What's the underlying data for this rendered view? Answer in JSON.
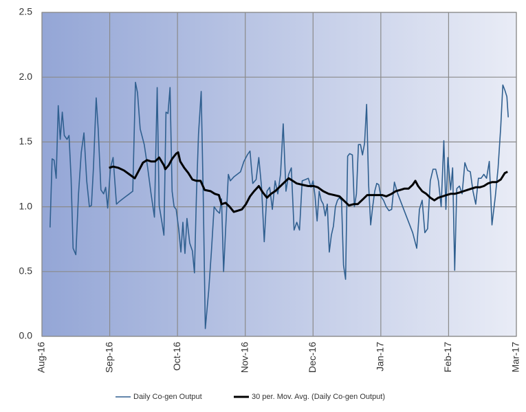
{
  "chart_data": {
    "type": "line",
    "xlim": [
      0,
      7
    ],
    "xticks": [
      {
        "value": 0,
        "label": "Aug-16"
      },
      {
        "value": 1,
        "label": "Sep-16"
      },
      {
        "value": 2,
        "label": "Oct-16"
      },
      {
        "value": 3,
        "label": "Nov-16"
      },
      {
        "value": 4,
        "label": "Dec-16"
      },
      {
        "value": 5,
        "label": "Jan-17"
      },
      {
        "value": 6,
        "label": "Feb-17"
      },
      {
        "value": 7,
        "label": "Mar-17"
      }
    ],
    "ylim": [
      0,
      2.5
    ],
    "yticks": [
      {
        "value": 0,
        "label": "0.0"
      },
      {
        "value": 0.5,
        "label": "0.5"
      },
      {
        "value": 1,
        "label": "1.0"
      },
      {
        "value": 1.5,
        "label": "1.5"
      },
      {
        "value": 2,
        "label": "2.0"
      },
      {
        "value": 2.5,
        "label": "2.5"
      }
    ],
    "grid": true,
    "legend": "bottom",
    "series": [
      {
        "name": "Daily Co-gen Output",
        "color": "#2f5f8f",
        "x": [
          0.12,
          0.15,
          0.18,
          0.21,
          0.24,
          0.27,
          0.3,
          0.33,
          0.37,
          0.4,
          0.43,
          0.46,
          0.5,
          0.54,
          0.58,
          0.62,
          0.66,
          0.7,
          0.73,
          0.76,
          0.8,
          0.83,
          0.87,
          0.91,
          0.94,
          0.97,
          1.01,
          1.05,
          1.1,
          1.14,
          1.19,
          1.24,
          1.29,
          1.34,
          1.38,
          1.41,
          1.45,
          1.51,
          1.56,
          1.61,
          1.66,
          1.7,
          1.73,
          1.77,
          1.8,
          1.83,
          1.86,
          1.89,
          1.92,
          1.95,
          1.98,
          2.02,
          2.05,
          2.08,
          2.11,
          2.14,
          2.18,
          2.22,
          2.25,
          2.28,
          2.31,
          2.35,
          2.38,
          2.41,
          2.46,
          2.5,
          2.54,
          2.58,
          2.62,
          2.65,
          2.68,
          2.71,
          2.75,
          2.78,
          2.83,
          2.88,
          2.93,
          2.98,
          3.03,
          3.07,
          3.11,
          3.16,
          3.2,
          3.24,
          3.28,
          3.32,
          3.36,
          3.4,
          3.44,
          3.48,
          3.52,
          3.56,
          3.6,
          3.64,
          3.68,
          3.72,
          3.76,
          3.8,
          3.84,
          3.89,
          3.93,
          3.97,
          4.0,
          4.03,
          4.06,
          4.09,
          4.12,
          4.15,
          4.18,
          4.21,
          4.24,
          4.27,
          4.3,
          4.33,
          4.36,
          4.39,
          4.42,
          4.45,
          4.48,
          4.51,
          4.54,
          4.58,
          4.61,
          4.64,
          4.67,
          4.7,
          4.73,
          4.76,
          4.79,
          4.82,
          4.85,
          4.88,
          4.91,
          4.94,
          4.97,
          5.0,
          5.04,
          5.08,
          5.12,
          5.16,
          5.2,
          5.25,
          5.47,
          5.53,
          5.57,
          5.61,
          5.65,
          5.69,
          5.73,
          5.77,
          5.81,
          5.85,
          5.89,
          5.93,
          5.96,
          5.99,
          6.03,
          6.06,
          6.09,
          6.12,
          6.16,
          6.2,
          6.24,
          6.28,
          6.32,
          6.36,
          6.4,
          6.44,
          6.48,
          6.52,
          6.56,
          6.6,
          6.64,
          6.69,
          6.73,
          6.77,
          6.8,
          6.83,
          6.86,
          6.88
        ],
        "values": [
          0.84,
          1.37,
          1.36,
          1.22,
          1.78,
          1.52,
          1.73,
          1.55,
          1.52,
          1.55,
          1.22,
          0.68,
          0.63,
          1.1,
          1.42,
          1.57,
          1.2,
          1.0,
          1.01,
          1.3,
          1.84,
          1.6,
          1.13,
          1.1,
          1.15,
          0.99,
          1.3,
          1.38,
          1.02,
          1.04,
          1.06,
          1.08,
          1.1,
          1.12,
          1.96,
          1.88,
          1.6,
          1.48,
          1.3,
          1.1,
          0.92,
          1.92,
          1.01,
          0.88,
          0.78,
          1.73,
          1.72,
          1.92,
          1.12,
          1.0,
          0.98,
          0.82,
          0.65,
          0.88,
          0.64,
          0.91,
          0.72,
          0.66,
          0.49,
          1.09,
          1.56,
          1.89,
          1.08,
          0.06,
          0.35,
          0.65,
          1.0,
          0.97,
          0.95,
          1.06,
          0.5,
          0.82,
          1.25,
          1.2,
          1.23,
          1.25,
          1.27,
          1.35,
          1.4,
          1.43,
          1.18,
          1.21,
          1.38,
          1.15,
          0.73,
          1.12,
          1.15,
          0.98,
          1.2,
          1.1,
          1.25,
          1.64,
          1.12,
          1.25,
          1.3,
          0.82,
          0.88,
          0.82,
          1.2,
          1.21,
          1.22,
          1.15,
          1.2,
          1.08,
          0.89,
          1.12,
          1.05,
          1.02,
          0.93,
          1.02,
          0.65,
          0.78,
          0.85,
          1.0,
          1.05,
          1.07,
          1.05,
          0.55,
          0.44,
          1.39,
          1.41,
          1.4,
          1.0,
          1.1,
          1.48,
          1.48,
          1.4,
          1.49,
          1.79,
          1.17,
          0.86,
          1.0,
          1.12,
          1.18,
          1.17,
          1.08,
          1.05,
          1.0,
          0.97,
          0.98,
          1.19,
          1.1,
          0.8,
          0.68,
          0.98,
          1.05,
          0.8,
          0.83,
          1.2,
          1.29,
          1.29,
          1.2,
          1.0,
          1.51,
          0.98,
          1.38,
          1.13,
          1.3,
          0.51,
          1.14,
          1.16,
          1.1,
          1.34,
          1.28,
          1.27,
          1.12,
          1.02,
          1.22,
          1.22,
          1.25,
          1.22,
          1.35,
          0.86,
          1.08,
          1.3,
          1.62,
          1.94,
          1.9,
          1.85,
          1.69
        ]
      },
      {
        "name": "30 per. Mov. Avg. (Daily Co-gen Output)",
        "color": "#000000",
        "x": [
          0.99,
          1.05,
          1.13,
          1.21,
          1.29,
          1.37,
          1.43,
          1.49,
          1.55,
          1.61,
          1.67,
          1.73,
          1.8,
          1.82,
          1.87,
          1.92,
          1.98,
          2.01,
          2.04,
          2.1,
          2.16,
          2.22,
          2.28,
          2.34,
          2.4,
          2.49,
          2.55,
          2.61,
          2.65,
          2.71,
          2.77,
          2.83,
          2.89,
          2.95,
          3.01,
          3.07,
          3.13,
          3.2,
          3.26,
          3.32,
          3.38,
          3.44,
          3.52,
          3.58,
          3.64,
          3.7,
          3.76,
          3.84,
          3.93,
          4.01,
          4.07,
          4.15,
          4.23,
          4.31,
          4.39,
          4.45,
          4.53,
          4.6,
          4.66,
          4.74,
          4.8,
          4.86,
          4.94,
          5.02,
          5.08,
          5.16,
          5.22,
          5.29,
          5.35,
          5.41,
          5.47,
          5.51,
          5.55,
          5.61,
          5.67,
          5.73,
          5.79,
          5.85,
          5.91,
          5.97,
          6.03,
          6.09,
          6.16,
          6.22,
          6.28,
          6.34,
          6.4,
          6.46,
          6.52,
          6.58,
          6.64,
          6.71,
          6.77,
          6.83,
          6.87
        ],
        "values": [
          1.3,
          1.31,
          1.3,
          1.28,
          1.25,
          1.22,
          1.28,
          1.34,
          1.36,
          1.35,
          1.35,
          1.38,
          1.32,
          1.29,
          1.32,
          1.37,
          1.41,
          1.42,
          1.35,
          1.3,
          1.26,
          1.21,
          1.2,
          1.2,
          1.13,
          1.12,
          1.1,
          1.09,
          1.02,
          1.03,
          1.0,
          0.96,
          0.97,
          0.98,
          1.02,
          1.08,
          1.12,
          1.16,
          1.11,
          1.07,
          1.1,
          1.12,
          1.16,
          1.19,
          1.22,
          1.2,
          1.18,
          1.17,
          1.16,
          1.16,
          1.15,
          1.12,
          1.1,
          1.09,
          1.08,
          1.05,
          1.01,
          1.02,
          1.02,
          1.06,
          1.09,
          1.09,
          1.09,
          1.09,
          1.08,
          1.1,
          1.12,
          1.13,
          1.14,
          1.14,
          1.17,
          1.2,
          1.16,
          1.12,
          1.1,
          1.07,
          1.05,
          1.07,
          1.08,
          1.09,
          1.1,
          1.1,
          1.11,
          1.12,
          1.13,
          1.14,
          1.15,
          1.15,
          1.16,
          1.18,
          1.19,
          1.19,
          1.21,
          1.26,
          1.27
        ]
      }
    ]
  }
}
